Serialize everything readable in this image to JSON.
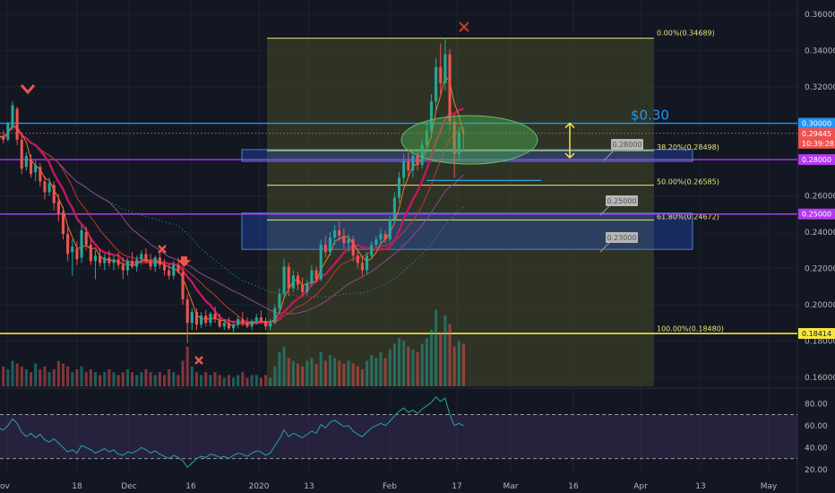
{
  "chart_data": [
    {
      "type": "candlestick",
      "ylim": [
        0.155,
        0.365
      ],
      "x_ticks": [
        "ov",
        "18",
        "Dec",
        "16",
        "2020",
        "13",
        "Feb",
        "17",
        "Mar",
        "16",
        "Apr",
        "13",
        "May"
      ],
      "y_ticks": [
        "0.36000",
        "0.34000",
        "0.32000",
        "0.30000",
        "0.28000",
        "0.26000",
        "0.24000",
        "0.22000",
        "0.20000",
        "0.18000",
        "0.16000"
      ],
      "y_tick_values": [
        0.36,
        0.34,
        0.32,
        0.3,
        0.28,
        0.26,
        0.24,
        0.22,
        0.2,
        0.18,
        0.16
      ],
      "price_tags": [
        {
          "label": "0.30000",
          "value": 0.3,
          "color": "#2196f3"
        },
        {
          "label": "0.29445",
          "value": 0.29445,
          "color": "#ef5350"
        },
        {
          "label": "10:39:28",
          "value": 0.2895,
          "color": "#ef5350"
        },
        {
          "label": "0.28000",
          "value": 0.28,
          "color": "#b23aee"
        },
        {
          "label": "0.25000",
          "value": 0.25,
          "color": "#b23aee"
        },
        {
          "label": "0.18414",
          "value": 0.18414,
          "color": "#f5e642"
        }
      ],
      "horizontal_lines": [
        {
          "value": 0.3,
          "color": "#2196f3"
        },
        {
          "value": 0.28,
          "color": "#b23aee"
        },
        {
          "value": 0.25,
          "color": "#b23aee"
        },
        {
          "value": 0.18414,
          "color": "#f5e642"
        }
      ],
      "fib_levels": [
        {
          "label": "0.00%(0.34689)",
          "value": 0.34689
        },
        {
          "label": "38.20%(0.28498)",
          "value": 0.28498
        },
        {
          "label": "50.00%(0.26585)",
          "value": 0.26585
        },
        {
          "label": "61.80%(0.24672)",
          "value": 0.24672
        },
        {
          "label": "100.00%(0.18480)",
          "value": 0.1848
        }
      ],
      "zones": [
        {
          "low": 0.279,
          "high": 0.2855,
          "label": "0.28000"
        },
        {
          "low": 0.2305,
          "high": 0.2505,
          "label": "0.25000"
        },
        {
          "label": "0.23000"
        }
      ],
      "annotation": "$0.30",
      "candles": [
        [
          0.29,
          0.294,
          0.288,
          0.293
        ],
        [
          0.293,
          0.296,
          0.289,
          0.291
        ],
        [
          0.291,
          0.301,
          0.29,
          0.3
        ],
        [
          0.298,
          0.312,
          0.296,
          0.31
        ],
        [
          0.308,
          0.309,
          0.288,
          0.291
        ],
        [
          0.291,
          0.293,
          0.272,
          0.275
        ],
        [
          0.276,
          0.284,
          0.274,
          0.282
        ],
        [
          0.28,
          0.283,
          0.27,
          0.272
        ],
        [
          0.273,
          0.28,
          0.268,
          0.277
        ],
        [
          0.276,
          0.278,
          0.265,
          0.268
        ],
        [
          0.268,
          0.271,
          0.258,
          0.262
        ],
        [
          0.262,
          0.27,
          0.26,
          0.267
        ],
        [
          0.266,
          0.268,
          0.252,
          0.256
        ],
        [
          0.257,
          0.261,
          0.246,
          0.25
        ],
        [
          0.251,
          0.254,
          0.236,
          0.239
        ],
        [
          0.239,
          0.244,
          0.224,
          0.228
        ],
        [
          0.229,
          0.236,
          0.216,
          0.232
        ],
        [
          0.231,
          0.235,
          0.222,
          0.225
        ],
        [
          0.226,
          0.244,
          0.223,
          0.241
        ],
        [
          0.24,
          0.243,
          0.23,
          0.233
        ],
        [
          0.233,
          0.237,
          0.222,
          0.224
        ],
        [
          0.224,
          0.23,
          0.214,
          0.227
        ],
        [
          0.227,
          0.231,
          0.221,
          0.223
        ],
        [
          0.223,
          0.228,
          0.219,
          0.226
        ],
        [
          0.226,
          0.23,
          0.221,
          0.223
        ],
        [
          0.223,
          0.227,
          0.219,
          0.225
        ],
        [
          0.225,
          0.229,
          0.22,
          0.222
        ],
        [
          0.222,
          0.226,
          0.214,
          0.219
        ],
        [
          0.219,
          0.226,
          0.216,
          0.224
        ],
        [
          0.224,
          0.229,
          0.22,
          0.221
        ],
        [
          0.221,
          0.227,
          0.218,
          0.225
        ],
        [
          0.225,
          0.23,
          0.222,
          0.228
        ],
        [
          0.228,
          0.231,
          0.223,
          0.224
        ],
        [
          0.224,
          0.228,
          0.219,
          0.221
        ],
        [
          0.221,
          0.227,
          0.218,
          0.226
        ],
        [
          0.226,
          0.229,
          0.22,
          0.222
        ],
        [
          0.222,
          0.225,
          0.216,
          0.219
        ],
        [
          0.219,
          0.222,
          0.214,
          0.216
        ],
        [
          0.216,
          0.224,
          0.214,
          0.222
        ],
        [
          0.222,
          0.226,
          0.217,
          0.218
        ],
        [
          0.218,
          0.22,
          0.2,
          0.203
        ],
        [
          0.203,
          0.206,
          0.179,
          0.19
        ],
        [
          0.19,
          0.198,
          0.186,
          0.196
        ],
        [
          0.196,
          0.198,
          0.186,
          0.189
        ],
        [
          0.189,
          0.196,
          0.187,
          0.194
        ],
        [
          0.194,
          0.197,
          0.188,
          0.19
        ],
        [
          0.19,
          0.196,
          0.188,
          0.195
        ],
        [
          0.195,
          0.199,
          0.19,
          0.192
        ],
        [
          0.192,
          0.195,
          0.187,
          0.188
        ],
        [
          0.188,
          0.192,
          0.186,
          0.19
        ],
        [
          0.19,
          0.193,
          0.186,
          0.187
        ],
        [
          0.187,
          0.191,
          0.185,
          0.189
        ],
        [
          0.189,
          0.194,
          0.187,
          0.192
        ],
        [
          0.192,
          0.196,
          0.188,
          0.19
        ],
        [
          0.19,
          0.193,
          0.187,
          0.188
        ],
        [
          0.188,
          0.192,
          0.186,
          0.191
        ],
        [
          0.191,
          0.195,
          0.189,
          0.193
        ],
        [
          0.193,
          0.197,
          0.19,
          0.191
        ],
        [
          0.191,
          0.193,
          0.186,
          0.188
        ],
        [
          0.188,
          0.192,
          0.186,
          0.19
        ],
        [
          0.19,
          0.2,
          0.189,
          0.198
        ],
        [
          0.198,
          0.209,
          0.196,
          0.206
        ],
        [
          0.206,
          0.225,
          0.204,
          0.221
        ],
        [
          0.221,
          0.223,
          0.205,
          0.209
        ],
        [
          0.209,
          0.219,
          0.207,
          0.216
        ],
        [
          0.216,
          0.218,
          0.208,
          0.211
        ],
        [
          0.211,
          0.215,
          0.205,
          0.207
        ],
        [
          0.207,
          0.214,
          0.205,
          0.212
        ],
        [
          0.212,
          0.222,
          0.21,
          0.219
        ],
        [
          0.219,
          0.221,
          0.212,
          0.214
        ],
        [
          0.214,
          0.236,
          0.213,
          0.233
        ],
        [
          0.233,
          0.238,
          0.226,
          0.229
        ],
        [
          0.229,
          0.24,
          0.227,
          0.237
        ],
        [
          0.237,
          0.244,
          0.233,
          0.241
        ],
        [
          0.241,
          0.247,
          0.235,
          0.238
        ],
        [
          0.238,
          0.242,
          0.231,
          0.234
        ],
        [
          0.234,
          0.239,
          0.229,
          0.236
        ],
        [
          0.236,
          0.238,
          0.224,
          0.227
        ],
        [
          0.227,
          0.231,
          0.22,
          0.223
        ],
        [
          0.223,
          0.227,
          0.216,
          0.219
        ],
        [
          0.219,
          0.229,
          0.217,
          0.227
        ],
        [
          0.227,
          0.235,
          0.225,
          0.233
        ],
        [
          0.233,
          0.238,
          0.231,
          0.236
        ],
        [
          0.236,
          0.242,
          0.233,
          0.239
        ],
        [
          0.239,
          0.241,
          0.234,
          0.236
        ],
        [
          0.236,
          0.249,
          0.235,
          0.247
        ],
        [
          0.247,
          0.262,
          0.245,
          0.259
        ],
        [
          0.259,
          0.273,
          0.256,
          0.27
        ],
        [
          0.27,
          0.283,
          0.265,
          0.279
        ],
        [
          0.279,
          0.284,
          0.271,
          0.274
        ],
        [
          0.274,
          0.285,
          0.27,
          0.282
        ],
        [
          0.282,
          0.286,
          0.274,
          0.277
        ],
        [
          0.277,
          0.291,
          0.275,
          0.288
        ],
        [
          0.288,
          0.301,
          0.284,
          0.296
        ],
        [
          0.296,
          0.316,
          0.292,
          0.312
        ],
        [
          0.312,
          0.336,
          0.306,
          0.331
        ],
        [
          0.331,
          0.344,
          0.316,
          0.322
        ],
        [
          0.322,
          0.347,
          0.318,
          0.338
        ],
        [
          0.338,
          0.341,
          0.296,
          0.301
        ],
        [
          0.301,
          0.305,
          0.27,
          0.283
        ],
        [
          0.283,
          0.298,
          0.279,
          0.295
        ],
        [
          0.295,
          0.298,
          0.286,
          0.2945
        ]
      ],
      "volumes": [
        5,
        7,
        6,
        9,
        8,
        7,
        6,
        5,
        8,
        6,
        7,
        5,
        6,
        9,
        8,
        7,
        5,
        6,
        7,
        5,
        6,
        5,
        4,
        5,
        6,
        5,
        4,
        5,
        6,
        5,
        4,
        5,
        6,
        5,
        4,
        5,
        4,
        6,
        5,
        4,
        9,
        14,
        7,
        5,
        4,
        5,
        4,
        5,
        4,
        3,
        4,
        3,
        4,
        5,
        3,
        4,
        4,
        3,
        4,
        3,
        7,
        12,
        14,
        10,
        9,
        8,
        7,
        9,
        10,
        8,
        12,
        9,
        11,
        10,
        9,
        8,
        9,
        8,
        7,
        6,
        9,
        11,
        10,
        12,
        10,
        13,
        15,
        17,
        16,
        14,
        13,
        12,
        15,
        17,
        20,
        27,
        19,
        25,
        22,
        14,
        16,
        15
      ]
    },
    {
      "type": "line",
      "ylim": [
        15,
        90
      ],
      "y_ticks": [
        "80.00",
        "60.00",
        "40.00",
        "20.00"
      ],
      "y_tick_values": [
        80,
        60,
        40,
        20
      ],
      "upper_band": 70,
      "lower_band": 30,
      "values": [
        58,
        56,
        60,
        66,
        62,
        54,
        50,
        53,
        49,
        52,
        47,
        45,
        48,
        44,
        40,
        36,
        38,
        35,
        42,
        40,
        38,
        35,
        37,
        39,
        36,
        38,
        34,
        33,
        36,
        35,
        37,
        40,
        38,
        35,
        37,
        34,
        32,
        30,
        33,
        31,
        28,
        22,
        26,
        30,
        32,
        31,
        34,
        33,
        31,
        32,
        30,
        33,
        35,
        34,
        32,
        35,
        37,
        36,
        33,
        35,
        42,
        48,
        56,
        50,
        53,
        51,
        49,
        52,
        55,
        53,
        61,
        58,
        63,
        65,
        62,
        59,
        60,
        55,
        52,
        50,
        54,
        58,
        60,
        62,
        60,
        64,
        69,
        73,
        76,
        72,
        74,
        71,
        75,
        78,
        81,
        86,
        82,
        85,
        70,
        60,
        62,
        60
      ]
    }
  ]
}
